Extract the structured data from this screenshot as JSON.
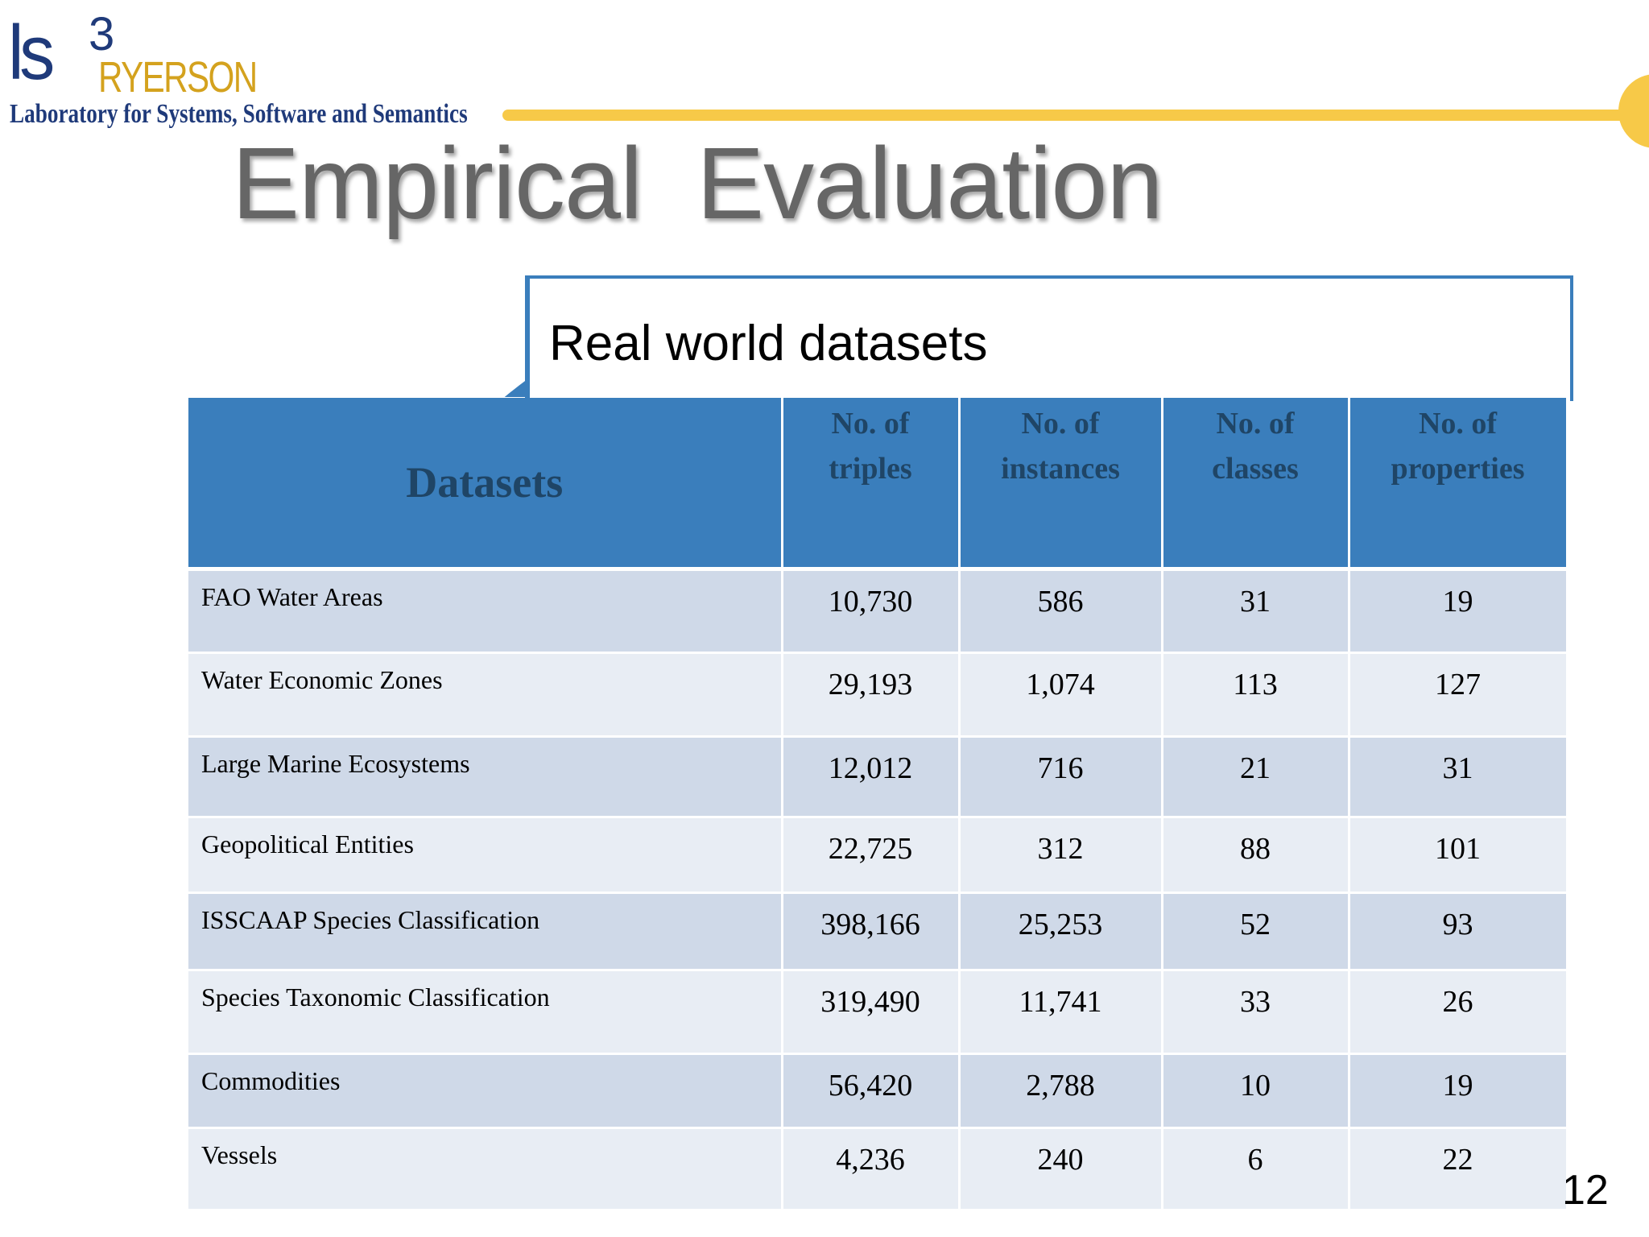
{
  "logo": {
    "ls": "ls",
    "superscript": "3",
    "ryerson": "RYERSON",
    "subtitle": "Laboratory for Systems, Software and Semantics"
  },
  "slide": {
    "title": "Empirical  Evaluation",
    "subtitle": "Real world datasets",
    "page_number": "12"
  },
  "colors": {
    "header_blue": "#3a7ebc",
    "gold": "#f7c948",
    "row_dark": "#cfd9e8",
    "row_light": "#e8edf4"
  },
  "table": {
    "headers": {
      "datasets": "Datasets",
      "triples_1": "No. of",
      "triples_2": "triples",
      "instances_1": "No. of",
      "instances_2": "instances",
      "classes_1": "No. of",
      "classes_2": "classes",
      "properties_1": "No. of",
      "properties_2": "properties"
    },
    "rows": [
      {
        "name": "FAO Water Areas",
        "triples": "10,730",
        "instances": "586",
        "classes": "31",
        "properties": "19"
      },
      {
        "name": "Water Economic Zones",
        "triples": "29,193",
        "instances": "1,074",
        "classes": "113",
        "properties": "127"
      },
      {
        "name": "Large Marine Ecosystems",
        "triples": "12,012",
        "instances": "716",
        "classes": "21",
        "properties": "31"
      },
      {
        "name": "Geopolitical Entities",
        "triples": "22,725",
        "instances": "312",
        "classes": "88",
        "properties": "101"
      },
      {
        "name": "ISSCAAP Species Classification",
        "triples": "398,166",
        "instances": "25,253",
        "classes": "52",
        "properties": "93"
      },
      {
        "name": "Species Taxonomic Classification",
        "triples": "319,490",
        "instances": "11,741",
        "classes": "33",
        "properties": "26"
      },
      {
        "name": "Commodities",
        "triples": "56,420",
        "instances": "2,788",
        "classes": "10",
        "properties": "19"
      },
      {
        "name": "Vessels",
        "triples": "4,236",
        "instances": "240",
        "classes": "6",
        "properties": "22"
      }
    ]
  }
}
